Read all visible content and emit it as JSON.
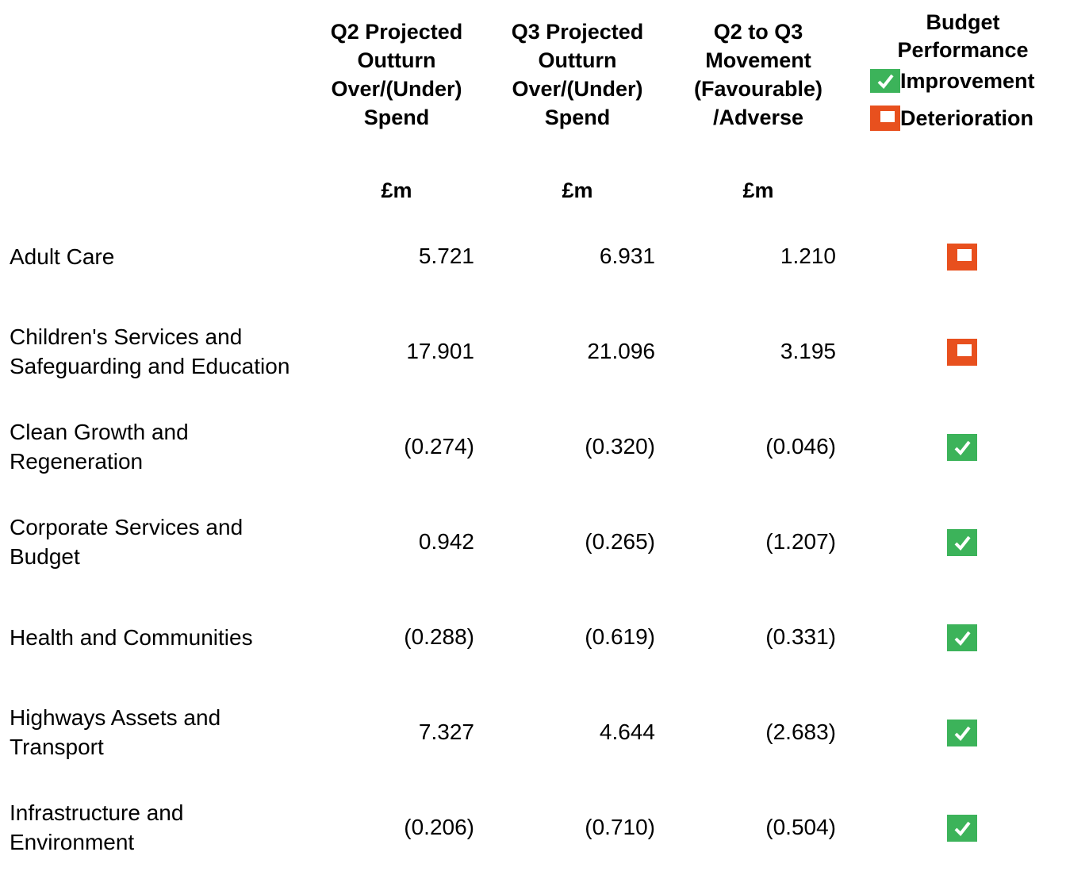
{
  "header": {
    "columns": [
      "Q2 Projected Outturn Over/(Under) Spend",
      "Q3 Projected Outturn Over/(Under) Spend",
      "Q2 to Q3 Movement (Favourable) /Adverse"
    ],
    "units": [
      "£m",
      "£m",
      "£m"
    ],
    "performance": {
      "title": "Budget Performance",
      "legend": [
        "Improvement",
        "Deterioration"
      ]
    }
  },
  "rows": [
    {
      "name": "Adult Care",
      "values": [
        "5.721",
        "6.931",
        "1.210"
      ],
      "performance": "Deterioration"
    },
    {
      "name": "Children's Services and Safeguarding and Education",
      "values": [
        "17.901",
        "21.096",
        "3.195"
      ],
      "performance": "Deterioration"
    },
    {
      "name": "Clean Growth and Regeneration",
      "values": [
        "(0.274)",
        "(0.320)",
        "(0.046)"
      ],
      "performance": "Improvement"
    },
    {
      "name": "Corporate Services and Budget",
      "values": [
        "0.942",
        "(0.265)",
        "(1.207)"
      ],
      "performance": "Improvement"
    },
    {
      "name": "Health and Communities",
      "values": [
        "(0.288)",
        "(0.619)",
        "(0.331)"
      ],
      "performance": "Improvement"
    },
    {
      "name": "Highways Assets and Transport",
      "values": [
        "7.327",
        "4.644",
        "(2.683)"
      ],
      "performance": "Improvement"
    },
    {
      "name": "Infrastructure and Environment",
      "values": [
        "(0.206)",
        "(0.710)",
        "(0.504)"
      ],
      "performance": "Improvement"
    }
  ]
}
